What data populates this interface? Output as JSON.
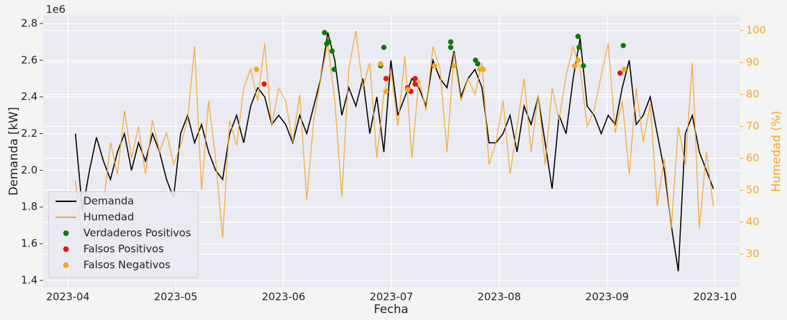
{
  "chart_data": {
    "type": "line",
    "x_label": "Fecha",
    "y_label": "Demanda [kW]",
    "y2_label": "Humedad (%)",
    "y_offset_label": "1e6",
    "xlim": [
      3.77,
      10.23
    ],
    "xticks": [
      {
        "value": 4,
        "label": "2023-04"
      },
      {
        "value": 5,
        "label": "2023-05"
      },
      {
        "value": 6,
        "label": "2023-06"
      },
      {
        "value": 7,
        "label": "2023-07"
      },
      {
        "value": 8,
        "label": "2023-08"
      },
      {
        "value": 9,
        "label": "2023-09"
      },
      {
        "value": 10,
        "label": "2023-10"
      }
    ],
    "ylim": [
      1.362,
      2.845
    ],
    "yticks": [
      {
        "value": 1.4,
        "label": "1.4"
      },
      {
        "value": 1.6,
        "label": "1.6"
      },
      {
        "value": 1.8,
        "label": "1.8"
      },
      {
        "value": 2.0,
        "label": "2.0"
      },
      {
        "value": 2.2,
        "label": "2.2"
      },
      {
        "value": 2.4,
        "label": "2.4"
      },
      {
        "value": 2.6,
        "label": "2.6"
      },
      {
        "value": 2.8,
        "label": "2.8"
      }
    ],
    "y2lim": [
      19.6,
      104.8
    ],
    "y2ticks": [
      30,
      40,
      50,
      60,
      70,
      80,
      90,
      100
    ],
    "y2color": "#f5a623",
    "grid": true,
    "legend": "lower left",
    "x": [
      4.07,
      4.135,
      4.2,
      4.265,
      4.33,
      4.395,
      4.46,
      4.525,
      4.59,
      4.655,
      4.72,
      4.785,
      4.85,
      4.915,
      4.98,
      5.045,
      5.11,
      5.175,
      5.24,
      5.305,
      5.37,
      5.435,
      5.5,
      5.565,
      5.63,
      5.695,
      5.76,
      5.825,
      5.89,
      5.955,
      6.02,
      6.085,
      6.15,
      6.215,
      6.28,
      6.345,
      6.41,
      6.475,
      6.54,
      6.605,
      6.67,
      6.735,
      6.8,
      6.865,
      6.93,
      6.995,
      7.06,
      7.125,
      7.19,
      7.255,
      7.32,
      7.385,
      7.45,
      7.515,
      7.58,
      7.645,
      7.71,
      7.775,
      7.84,
      7.905,
      7.97,
      8.035,
      8.1,
      8.165,
      8.23,
      8.295,
      8.36,
      8.425,
      8.49,
      8.555,
      8.62,
      8.685,
      8.75,
      8.815,
      8.88,
      8.945,
      9.01,
      9.075,
      9.14,
      9.205,
      9.27,
      9.335,
      9.4,
      9.465,
      9.53,
      9.595,
      9.66,
      9.725,
      9.79,
      9.855,
      9.92,
      9.985
    ],
    "series": [
      {
        "name": "Demanda",
        "type": "line",
        "axis": "y",
        "color": "#000000",
        "values": [
          2.2,
          1.78,
          2.0,
          2.18,
          2.05,
          1.95,
          2.1,
          2.2,
          2.0,
          2.15,
          2.05,
          2.2,
          2.1,
          1.95,
          1.85,
          2.2,
          2.3,
          2.15,
          2.25,
          2.1,
          2.0,
          1.95,
          2.2,
          2.3,
          2.15,
          2.35,
          2.45,
          2.4,
          2.25,
          2.3,
          2.25,
          2.15,
          2.3,
          2.2,
          2.35,
          2.5,
          2.75,
          2.6,
          2.3,
          2.45,
          2.35,
          2.5,
          2.2,
          2.4,
          2.1,
          2.6,
          2.3,
          2.4,
          2.5,
          2.45,
          2.35,
          2.6,
          2.5,
          2.45,
          2.65,
          2.4,
          2.5,
          2.55,
          2.45,
          2.15,
          2.15,
          2.2,
          2.3,
          2.1,
          2.35,
          2.25,
          2.4,
          2.15,
          1.9,
          2.3,
          2.2,
          2.5,
          2.72,
          2.35,
          2.3,
          2.2,
          2.3,
          2.25,
          2.45,
          2.6,
          2.25,
          2.3,
          2.4,
          2.2,
          2.0,
          1.7,
          1.45,
          2.2,
          2.3,
          2.1,
          2.0,
          1.9
        ]
      },
      {
        "name": "Humedad",
        "type": "line",
        "axis": "y2",
        "color": "#f5a623",
        "values": [
          53,
          35,
          40,
          30,
          45,
          65,
          55,
          75,
          60,
          70,
          55,
          72,
          62,
          68,
          58,
          64,
          72,
          95,
          50,
          78,
          60,
          35,
          72,
          64,
          82,
          88,
          78,
          96,
          70,
          82,
          78,
          65,
          80,
          47,
          72,
          85,
          96,
          78,
          48,
          88,
          100,
          82,
          90,
          60,
          80,
          88,
          70,
          92,
          60,
          85,
          75,
          95,
          88,
          62,
          93,
          78,
          85,
          80,
          90,
          58,
          65,
          78,
          55,
          70,
          85,
          62,
          80,
          58,
          82,
          72,
          86,
          95,
          88,
          70,
          75,
          86,
          96,
          68,
          78,
          55,
          82,
          65,
          77,
          45,
          60,
          38,
          70,
          58,
          90,
          38,
          62,
          45
        ]
      },
      {
        "name": "Verdaderos Positivos",
        "type": "scatter",
        "axis": "y",
        "color": "#0a7a0a",
        "x": [
          6.38,
          6.4,
          6.42,
          6.45,
          6.47,
          6.9,
          6.93,
          7.55,
          7.55,
          7.78,
          7.8,
          8.73,
          8.74,
          8.78,
          9.15
        ],
        "values": [
          2.75,
          2.69,
          2.7,
          2.65,
          2.55,
          2.57,
          2.67,
          2.7,
          2.67,
          2.6,
          2.58,
          2.73,
          2.67,
          2.57,
          2.68
        ]
      },
      {
        "name": "Falsos Positivos",
        "type": "scatter",
        "axis": "y",
        "color": "#e8140c",
        "x": [
          5.82,
          6.95,
          7.15,
          7.18,
          7.22,
          7.22,
          9.12
        ],
        "values": [
          2.47,
          2.5,
          2.45,
          2.43,
          2.5,
          2.47,
          2.53
        ]
      },
      {
        "name": "Falsos Negativos",
        "type": "scatter",
        "axis": "y",
        "color": "#f5a623",
        "x": [
          5.75,
          6.9,
          6.95,
          7.15,
          7.4,
          7.58,
          7.82,
          7.85,
          8.7,
          8.73,
          9.16
        ],
        "values": [
          2.55,
          2.58,
          2.43,
          2.44,
          2.57,
          2.57,
          2.55,
          2.55,
          2.57,
          2.6,
          2.55
        ]
      }
    ]
  }
}
